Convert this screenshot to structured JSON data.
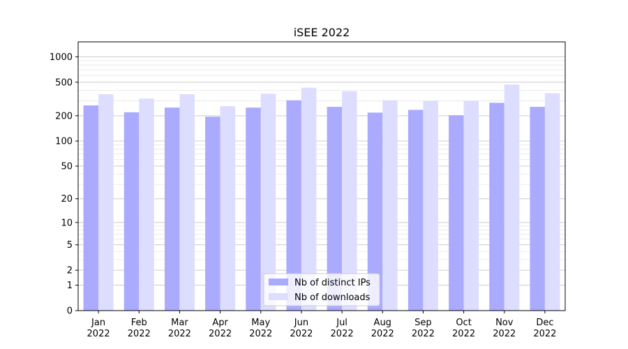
{
  "chart_data": {
    "type": "bar",
    "title": "iSEE 2022",
    "xlabel": "",
    "ylabel": "",
    "yscale": "symlog",
    "ylim": [
      0,
      1500
    ],
    "yticks": [
      0,
      1,
      2,
      5,
      10,
      20,
      50,
      100,
      200,
      500,
      1000
    ],
    "ytick_labels": [
      "0",
      "1",
      "2",
      "5",
      "10",
      "20",
      "50",
      "100",
      "200",
      "500",
      "1000"
    ],
    "grid": true,
    "legend_position": "bottom-center",
    "categories": [
      [
        "Jan",
        "2022"
      ],
      [
        "Feb",
        "2022"
      ],
      [
        "Mar",
        "2022"
      ],
      [
        "Apr",
        "2022"
      ],
      [
        "May",
        "2022"
      ],
      [
        "Jun",
        "2022"
      ],
      [
        "Jul",
        "2022"
      ],
      [
        "Aug",
        "2022"
      ],
      [
        "Sep",
        "2022"
      ],
      [
        "Oct",
        "2022"
      ],
      [
        "Nov",
        "2022"
      ],
      [
        "Dec",
        "2022"
      ]
    ],
    "series": [
      {
        "name": "Nb of distinct IPs",
        "color": "#aaaaff",
        "values": [
          265,
          220,
          250,
          195,
          250,
          305,
          255,
          218,
          235,
          203,
          285,
          255
        ]
      },
      {
        "name": "Nb of downloads",
        "color": "#ddddff",
        "values": [
          360,
          320,
          360,
          260,
          365,
          430,
          390,
          305,
          300,
          300,
          470,
          370
        ]
      }
    ]
  }
}
